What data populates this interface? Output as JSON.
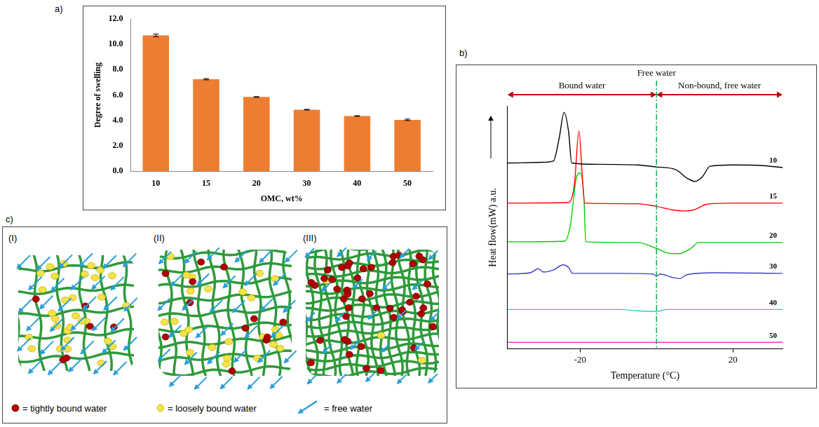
{
  "chart_data": [
    {
      "label": "a)",
      "type": "bar",
      "categories": [
        "10",
        "15",
        "20",
        "30",
        "40",
        "50"
      ],
      "values": [
        10.7,
        7.25,
        5.85,
        4.85,
        4.35,
        4.05
      ],
      "errors": [
        0.1,
        0.05,
        0.03,
        0.03,
        0.03,
        0.06
      ],
      "color": "#ed7d31",
      "x_label": "OMC, wt%",
      "y_label": "Degree of swelling",
      "ylim": [
        0,
        12
      ],
      "yticks": [
        {
          "value": 0,
          "label": "0.0"
        },
        {
          "value": 2,
          "label": "2.0"
        },
        {
          "value": 4,
          "label": "4.0"
        },
        {
          "value": 6,
          "label": "6.0"
        },
        {
          "value": 8,
          "label": "8.0"
        },
        {
          "value": 10,
          "label": "10.0"
        },
        {
          "value": 12,
          "label": "12.0"
        }
      ],
      "grid": false
    },
    {
      "label": "b)",
      "type": "line",
      "x_label": "Temperature (°C)",
      "y_label": "Heat flow(mW) a.u.",
      "xlim": [
        -39,
        33
      ],
      "xticks": [
        -20,
        20
      ],
      "ylim": [
        6,
        43
      ],
      "tick_labels": "x",
      "grid": false,
      "annotations": [
        {
          "text": "Free water",
          "x": 0,
          "color": "#00b050",
          "line_style": "dashdot"
        },
        {
          "text": "Bound water",
          "from": -39,
          "to": 0,
          "color": "#c00000"
        },
        {
          "text": "Non-bound, free water",
          "from": 0,
          "to": 33,
          "color": "#c00000"
        }
      ],
      "series": [
        {
          "name": "10",
          "color": "#000000",
          "x": [
            -39,
            -30,
            -27,
            -25.5,
            -24.2,
            -23,
            -22.2,
            -15,
            -5,
            0,
            5,
            8,
            10,
            12,
            14,
            20,
            28,
            33
          ],
          "values": [
            34.3,
            34.4,
            34.6,
            38,
            42,
            39,
            34.3,
            34.1,
            34,
            33.7,
            33.3,
            32,
            31.5,
            32.2,
            33.8,
            34,
            33.9,
            33.6
          ]
        },
        {
          "name": "15",
          "color": "#ff0000",
          "x": [
            -39,
            -23,
            -21.5,
            -20.3,
            -19.5,
            -18.8,
            -5,
            0,
            4,
            7,
            10,
            13,
            20,
            33
          ],
          "values": [
            28.2,
            28.3,
            31,
            39.2,
            33,
            28.2,
            28.1,
            27.7,
            27.2,
            27,
            27.2,
            28,
            28.2,
            28.2
          ]
        },
        {
          "name": "20",
          "color": "#00cc00",
          "x": [
            -39,
            -24,
            -22.5,
            -21,
            -20,
            -19,
            -18.5,
            -5,
            0,
            3,
            6,
            9,
            11,
            33
          ],
          "values": [
            22.3,
            22.4,
            25,
            32,
            32.8,
            29,
            22.3,
            22.2,
            21.3,
            20.6,
            20.5,
            21.3,
            22.2,
            22.2
          ]
        },
        {
          "name": "30",
          "color": "#4040c0",
          "x": [
            -39,
            -33,
            -31,
            -29.5,
            -27,
            -24.5,
            -23,
            -22,
            -10,
            -1,
            0,
            1,
            4,
            6,
            8,
            15,
            33
          ],
          "values": [
            17.4,
            17.6,
            18.2,
            17.7,
            18,
            18.8,
            18.4,
            17.5,
            17.5,
            17.4,
            17.1,
            17.4,
            16.9,
            16.7,
            17.3,
            17.6,
            17.5
          ]
        },
        {
          "name": "40",
          "color": "#33cccc",
          "x": [
            -39,
            -10,
            -5,
            0,
            3,
            33
          ],
          "values": [
            12,
            12,
            11.8,
            11.7,
            12,
            12
          ]
        },
        {
          "name": "50",
          "color": "#ff33cc",
          "x": [
            -39,
            33
          ],
          "values": [
            7,
            7
          ]
        }
      ]
    }
  ],
  "diagram": {
    "label": "c)",
    "panels": [
      {
        "label": "(I)"
      },
      {
        "label": "(II)"
      },
      {
        "label": "(III)"
      }
    ],
    "legend": [
      {
        "text": "= tightly bound water",
        "color": "#b00000",
        "marker": "dot"
      },
      {
        "text": "= loosely bound water",
        "color": "#f2e34a",
        "marker": "dot"
      },
      {
        "text": "= free water",
        "color": "#2a9fd8",
        "marker": "arrow"
      }
    ]
  }
}
